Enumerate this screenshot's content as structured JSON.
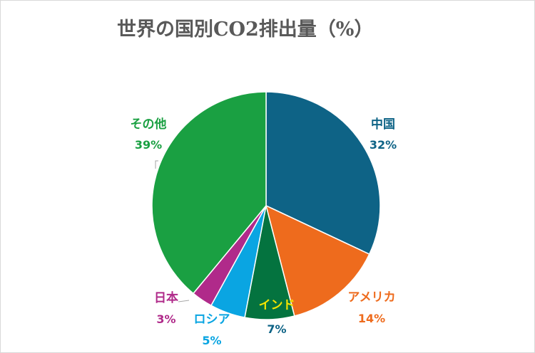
{
  "chart_data": {
    "type": "pie",
    "title": "世界の国別CO2排出量（%）",
    "slices": [
      {
        "label": "中国",
        "value": 32,
        "display": "32%",
        "color": "#0e6386"
      },
      {
        "label": "アメリカ",
        "value": 14,
        "display": "14%",
        "color": "#ee6b1d"
      },
      {
        "label": "インド",
        "value": 7,
        "display": "7%",
        "color": "#04733f"
      },
      {
        "label": "ロシア",
        "value": 5,
        "display": "5%",
        "color": "#0aa5e2"
      },
      {
        "label": "日本",
        "value": 3,
        "display": "3%",
        "color": "#b02a8a"
      },
      {
        "label": "その他",
        "value": 39,
        "display": "39%",
        "color": "#1aa042"
      }
    ],
    "label_colors": {
      "中国": "#0e6386",
      "アメリカ": "#ee6b1d",
      "インド": "#f5e400",
      "インド_value": "#0e6386",
      "ロシア": "#0aa5e2",
      "日本": "#b02a8a",
      "その他": "#1aa042"
    }
  }
}
